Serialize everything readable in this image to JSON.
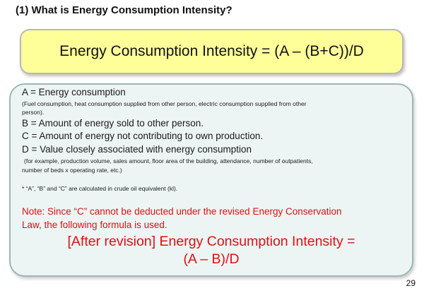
{
  "heading": "(1) What is Energy Consumption Intensity?",
  "formula": "Energy Consumption Intensity = (A – (B+C))/D",
  "definitions": {
    "a_label": "A = Energy consumption",
    "a_detail_1": "(Fuel consumption, heat consumption supplied from other person, electric consumption supplied from other",
    "a_detail_2": "person).",
    "b_label": "B = Amount of energy sold to other person.",
    "c_label": "C = Amount of energy not contributing to own production.",
    "d_label": "D = Value closely associated with energy consumption",
    "d_detail_1": "(for example, production volume, sales amount, floor area of the building, attendance, number of outpatients,",
    "d_detail_2": "number of beds x operating rate, etc.)",
    "footnote": "* “A”, “B” and “C” are calculated in crude oil equivalent (kl).",
    "note_1": "Note: Since “C” cannot be deducted under the revised Energy Conservation",
    "note_2": "Law, the following formula is used.",
    "after_1": "[After revision] Energy Consumption Intensity =",
    "after_2": "(A – B)/D"
  },
  "page_number": "29"
}
